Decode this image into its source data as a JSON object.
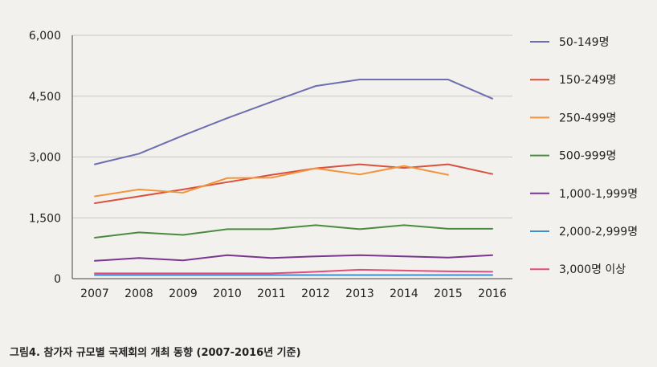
{
  "caption": "그림4. 참가자 규모별 국제회의 개최 동향 (2007-2016년 기준)",
  "chart_data": {
    "type": "line",
    "x": [
      2007,
      2008,
      2009,
      2010,
      2011,
      2012,
      2013,
      2014,
      2015,
      2016
    ],
    "x_tick_labels": [
      "2007",
      "2008",
      "2009",
      "2010",
      "2011",
      "2012",
      "2013",
      "2014",
      "2015",
      "2016"
    ],
    "y_ticks": [
      0,
      1500,
      3000,
      4500,
      6000
    ],
    "y_tick_labels": [
      "0",
      "1,500",
      "3,000",
      "4,500",
      "6,000"
    ],
    "ylim": [
      0,
      6000
    ],
    "grid": true,
    "legend_position": "right",
    "title": "",
    "xlabel": "",
    "ylabel": "",
    "series": [
      {
        "name": "50-149명",
        "color": "#6b6fb0",
        "values": [
          2820,
          3080,
          3530,
          3960,
          4360,
          4750,
          4910,
          4910,
          4910,
          4440
        ]
      },
      {
        "name": "150-249명",
        "color": "#d9503f",
        "values": [
          1860,
          2030,
          2200,
          2380,
          2560,
          2720,
          2820,
          2730,
          2820,
          2580
        ]
      },
      {
        "name": "250-499명",
        "color": "#f0953b",
        "values": [
          2030,
          2200,
          2120,
          2480,
          2490,
          2720,
          2570,
          2780,
          2560,
          null
        ]
      },
      {
        "name": "500-999명",
        "color": "#4a8c3f",
        "values": [
          1010,
          1140,
          1080,
          1220,
          1220,
          1320,
          1220,
          1320,
          1230,
          1230
        ]
      },
      {
        "name": "1,000-1,999명",
        "color": "#7a3590",
        "values": [
          440,
          510,
          450,
          580,
          510,
          550,
          580,
          550,
          520,
          580
        ]
      },
      {
        "name": "2,000-2,999명",
        "color": "#3a8fd0",
        "values": [
          90,
          90,
          90,
          90,
          90,
          90,
          90,
          90,
          90,
          90
        ]
      },
      {
        "name": "3,000명 이상",
        "color": "#e04c7c",
        "values": [
          130,
          130,
          130,
          130,
          130,
          170,
          220,
          200,
          180,
          170
        ]
      }
    ]
  }
}
